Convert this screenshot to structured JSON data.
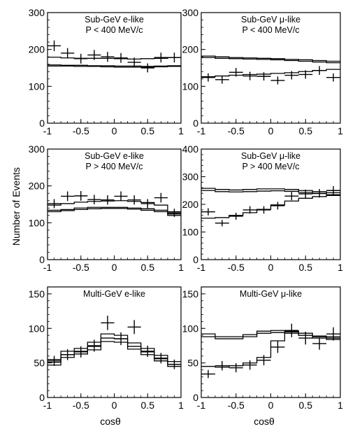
{
  "figure": {
    "ylabel": "Number of Events",
    "xlabel": "cosθ",
    "x_ticks": [
      "-1",
      "-0.5",
      "0",
      "0.5",
      "1"
    ]
  },
  "chart_data": [
    {
      "type": "histogram-with-points",
      "title_lines": [
        "Sub-GeV e-like",
        "P < 400 MeV/c"
      ],
      "xlim": [
        -1,
        1
      ],
      "ylim": [
        0,
        300
      ],
      "y_ticks": [
        "0",
        "100",
        "200",
        "300"
      ],
      "bin_edges": [
        -1,
        -0.8,
        -0.6,
        -0.4,
        -0.2,
        0,
        0.2,
        0.4,
        0.6,
        0.8,
        1
      ],
      "series": [
        {
          "role": "histogram",
          "values": [
            179,
            177,
            176,
            176,
            176,
            175,
            174,
            175,
            176,
            178
          ]
        },
        {
          "role": "histogram",
          "values": [
            158,
            157,
            157,
            156,
            156,
            155,
            155,
            154,
            155,
            156
          ]
        },
        {
          "role": "histogram",
          "values": [
            155,
            155,
            154,
            154,
            153,
            152,
            152,
            152,
            153,
            154
          ]
        },
        {
          "role": "data",
          "x": [
            -0.9,
            -0.7,
            -0.5,
            -0.3,
            -0.1,
            0.1,
            0.3,
            0.5,
            0.7,
            0.9
          ],
          "y": [
            210,
            190,
            175,
            185,
            180,
            177,
            165,
            150,
            178,
            178
          ]
        }
      ]
    },
    {
      "type": "histogram-with-points",
      "title_lines": [
        "Sub-GeV μ-like",
        "P < 400 MeV/c"
      ],
      "xlim": [
        -1,
        1
      ],
      "ylim": [
        0,
        300
      ],
      "y_ticks": [
        "0",
        "100",
        "200",
        "300"
      ],
      "bin_edges": [
        -1,
        -0.8,
        -0.6,
        -0.4,
        -0.2,
        0,
        0.2,
        0.4,
        0.6,
        0.8,
        1
      ],
      "series": [
        {
          "role": "histogram",
          "values": [
            182,
            180,
            178,
            177,
            176,
            175,
            173,
            172,
            170,
            168
          ]
        },
        {
          "role": "histogram",
          "values": [
            178,
            176,
            175,
            174,
            173,
            172,
            170,
            168,
            166,
            164
          ]
        },
        {
          "role": "histogram",
          "values": [
            126,
            128,
            130,
            132,
            133,
            135,
            137,
            140,
            143,
            146
          ]
        },
        {
          "role": "data",
          "x": [
            -0.9,
            -0.7,
            -0.5,
            -0.3,
            -0.1,
            0.1,
            0.3,
            0.5,
            0.7,
            0.9
          ],
          "y": [
            124,
            118,
            138,
            128,
            127,
            116,
            130,
            132,
            143,
            124
          ]
        }
      ]
    },
    {
      "type": "histogram-with-points",
      "title_lines": [
        "Sub-GeV e-like",
        "P > 400 MeV/c"
      ],
      "xlim": [
        -1,
        1
      ],
      "ylim": [
        0,
        300
      ],
      "y_ticks": [
        "0",
        "100",
        "200",
        "300"
      ],
      "bin_edges": [
        -1,
        -0.8,
        -0.6,
        -0.4,
        -0.2,
        0,
        0.2,
        0.4,
        0.6,
        0.8,
        1
      ],
      "series": [
        {
          "role": "histogram",
          "values": [
            148,
            152,
            156,
            158,
            159,
            160,
            158,
            155,
            148,
            130
          ]
        },
        {
          "role": "histogram",
          "values": [
            134,
            136,
            140,
            142,
            142,
            142,
            140,
            138,
            134,
            124
          ]
        },
        {
          "role": "histogram",
          "values": [
            130,
            133,
            136,
            138,
            139,
            139,
            137,
            134,
            130,
            120
          ]
        },
        {
          "role": "data",
          "x": [
            -0.9,
            -0.7,
            -0.5,
            -0.3,
            -0.1,
            0.1,
            0.3,
            0.5,
            0.7,
            0.9
          ],
          "y": [
            152,
            172,
            173,
            163,
            162,
            172,
            162,
            152,
            168,
            127
          ]
        }
      ]
    },
    {
      "type": "histogram-with-points",
      "title_lines": [
        "Sub-GeV μ-like",
        "P > 400 MeV/c"
      ],
      "xlim": [
        -1,
        1
      ],
      "ylim": [
        0,
        400
      ],
      "y_ticks": [
        "0",
        "100",
        "200",
        "300",
        "400"
      ],
      "bin_edges": [
        -1,
        -0.8,
        -0.6,
        -0.4,
        -0.2,
        0,
        0.2,
        0.4,
        0.6,
        0.8,
        1
      ],
      "series": [
        {
          "role": "histogram",
          "values": [
            258,
            254,
            252,
            254,
            256,
            256,
            254,
            250,
            246,
            242
          ]
        },
        {
          "role": "histogram",
          "values": [
            250,
            246,
            245,
            246,
            248,
            249,
            247,
            243,
            239,
            235
          ]
        },
        {
          "role": "histogram",
          "values": [
            150,
            152,
            160,
            170,
            182,
            198,
            212,
            222,
            228,
            232
          ]
        },
        {
          "role": "data",
          "x": [
            -0.9,
            -0.7,
            -0.5,
            -0.3,
            -0.1,
            0.1,
            0.3,
            0.5,
            0.7,
            0.9
          ],
          "y": [
            173,
            132,
            157,
            180,
            180,
            195,
            230,
            238,
            240,
            250
          ]
        }
      ]
    },
    {
      "type": "histogram-with-points",
      "title_lines": [
        "Multi-GeV e-like"
      ],
      "xlim": [
        -1,
        1
      ],
      "ylim": [
        0,
        160
      ],
      "y_ticks": [
        "0",
        "50",
        "100",
        "150"
      ],
      "bin_edges": [
        -1,
        -0.8,
        -0.6,
        -0.4,
        -0.2,
        0,
        0.2,
        0.4,
        0.6,
        0.8,
        1
      ],
      "series": [
        {
          "role": "histogram",
          "values": [
            55,
            67,
            71,
            80,
            92,
            90,
            79,
            71,
            61,
            52
          ]
        },
        {
          "role": "histogram",
          "values": [
            51,
            62,
            67,
            74,
            86,
            85,
            74,
            66,
            56,
            48
          ]
        },
        {
          "role": "histogram",
          "values": [
            47,
            58,
            63,
            69,
            81,
            80,
            70,
            62,
            53,
            45
          ]
        },
        {
          "role": "data",
          "x": [
            -0.9,
            -0.7,
            -0.5,
            -0.3,
            -0.1,
            0.1,
            0.3,
            0.5,
            0.7,
            0.9
          ],
          "y": [
            53,
            62,
            66,
            75,
            108,
            85,
            102,
            67,
            57,
            48
          ]
        }
      ]
    },
    {
      "type": "histogram-with-points",
      "title_lines": [
        "Multi-GeV μ-like"
      ],
      "xlim": [
        -1,
        1
      ],
      "ylim": [
        0,
        160
      ],
      "y_ticks": [
        "0",
        "50",
        "100",
        "150"
      ],
      "bin_edges": [
        -1,
        -0.8,
        -0.6,
        -0.4,
        -0.2,
        0,
        0.2,
        0.4,
        0.6,
        0.8,
        1
      ],
      "series": [
        {
          "role": "histogram",
          "values": [
            92,
            88,
            88,
            91,
            96,
            97,
            96,
            93,
            89,
            88
          ]
        },
        {
          "role": "histogram",
          "values": [
            88,
            85,
            85,
            88,
            93,
            94,
            93,
            90,
            86,
            84
          ]
        },
        {
          "role": "histogram",
          "values": [
            45,
            44,
            46,
            50,
            58,
            82,
            95,
            90,
            88,
            86
          ]
        },
        {
          "role": "data",
          "x": [
            -0.9,
            -0.7,
            -0.5,
            -0.3,
            -0.1,
            0.1,
            0.3,
            0.5,
            0.7,
            0.9
          ],
          "y": [
            34,
            46,
            43,
            47,
            54,
            73,
            97,
            86,
            78,
            92
          ]
        }
      ]
    }
  ]
}
